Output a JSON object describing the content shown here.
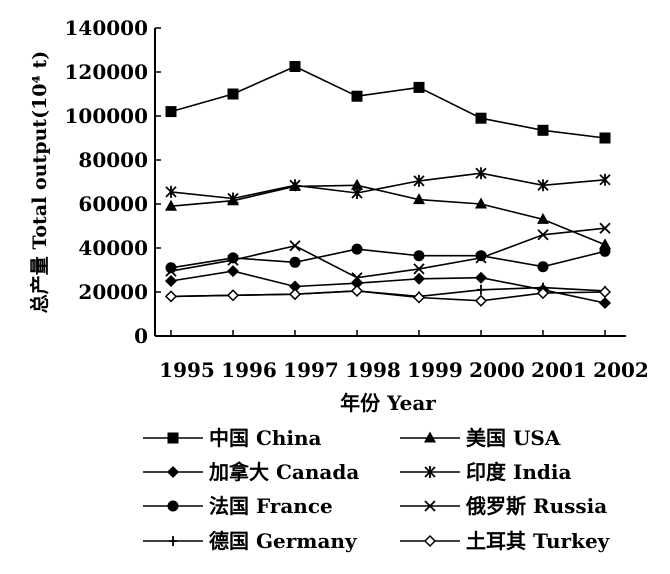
{
  "chart_data": {
    "type": "line",
    "title": "",
    "xlabel": "年份 Year",
    "ylabel": "总产量 Total output(10⁴ t)",
    "categories": [
      "1995",
      "1996",
      "1997",
      "1998",
      "1999",
      "2000",
      "2001",
      "2002"
    ],
    "yticks": [
      "0",
      "20000",
      "40000",
      "60000",
      "80000",
      "100000",
      "120000",
      "140000"
    ],
    "ylim": [
      0,
      140000
    ],
    "grid": false,
    "legend_position": "bottom",
    "series": [
      {
        "name": "中国 China",
        "marker": "filled-square",
        "values": [
          102000,
          110000,
          122500,
          109000,
          113000,
          99000,
          93500,
          90000
        ]
      },
      {
        "name": "美国 USA",
        "marker": "filled-triangle",
        "values": [
          59000,
          61500,
          68000,
          68500,
          62000,
          60000,
          53000,
          41500
        ]
      },
      {
        "name": "加拿大 Canada",
        "marker": "filled-diamond",
        "values": [
          25000,
          29500,
          22500,
          24000,
          26000,
          26500,
          21000,
          15000
        ]
      },
      {
        "name": "印度 India",
        "marker": "star",
        "values": [
          65500,
          62500,
          68500,
          65000,
          70500,
          74000,
          68500,
          71000
        ]
      },
      {
        "name": "法国 France",
        "marker": "filled-circle",
        "values": [
          31000,
          35500,
          33500,
          39500,
          36500,
          36500,
          31500,
          38500
        ]
      },
      {
        "name": "俄罗斯 Russia",
        "marker": "x",
        "values": [
          29500,
          34500,
          41000,
          26500,
          30500,
          35500,
          46000,
          49000
        ]
      },
      {
        "name": "德国 Germany",
        "marker": "plus",
        "values": [
          18000,
          18500,
          19000,
          20500,
          18000,
          21000,
          22000,
          20500
        ]
      },
      {
        "name": "土耳其 Turkey",
        "marker": "open-diamond",
        "values": [
          18000,
          18500,
          19000,
          20500,
          17500,
          16000,
          19500,
          20000
        ]
      }
    ]
  }
}
